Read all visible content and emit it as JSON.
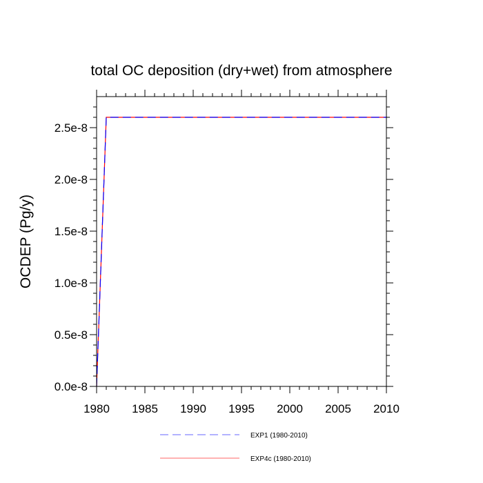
{
  "chart_data": {
    "type": "line",
    "title": "total OC deposition (dry+wet) from atmosphere",
    "xlabel": "",
    "ylabel": "OCDEP  (Pg/y)",
    "xlim": [
      1980,
      2010
    ],
    "ylim": [
      0,
      2.8e-08
    ],
    "xticks": [
      1980,
      1985,
      1990,
      1995,
      2000,
      2005,
      2010
    ],
    "xtick_labels": [
      "1980",
      "1985",
      "1990",
      "1995",
      "2000",
      "2005",
      "2010"
    ],
    "yticks": [
      0,
      5e-09,
      1e-08,
      1.5e-08,
      2e-08,
      2.5e-08
    ],
    "ytick_labels": [
      "0.0e-8",
      "0.5e-8",
      "1.0e-8",
      "1.5e-8",
      "2.0e-8",
      "2.5e-8"
    ],
    "grid": false,
    "legend_position": "bottom",
    "series": [
      {
        "name": "EXP1 (1980-2010)",
        "color": "#0000ff",
        "dash": true,
        "x": [
          1980,
          1981,
          2010
        ],
        "y": [
          0,
          2.6e-08,
          2.6e-08
        ]
      },
      {
        "name": "EXP4c (1980-2010)",
        "color": "#ff0000",
        "dash": false,
        "x": [
          1980,
          1981,
          2010
        ],
        "y": [
          0,
          2.6e-08,
          2.6e-08
        ]
      }
    ]
  }
}
